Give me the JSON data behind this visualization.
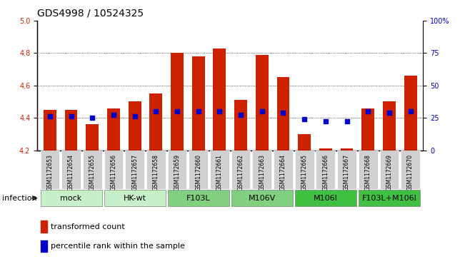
{
  "title": "GDS4998 / 10524325",
  "samples": [
    "GSM1172653",
    "GSM1172654",
    "GSM1172655",
    "GSM1172656",
    "GSM1172657",
    "GSM1172658",
    "GSM1172659",
    "GSM1172660",
    "GSM1172661",
    "GSM1172662",
    "GSM1172663",
    "GSM1172664",
    "GSM1172665",
    "GSM1172666",
    "GSM1172667",
    "GSM1172668",
    "GSM1172669",
    "GSM1172670"
  ],
  "bar_values": [
    4.45,
    4.45,
    4.36,
    4.46,
    4.5,
    4.55,
    4.8,
    4.78,
    4.83,
    4.51,
    4.79,
    4.65,
    4.3,
    4.21,
    4.21,
    4.46,
    4.5,
    4.66
  ],
  "bar_base": 4.2,
  "dot_values": [
    4.41,
    4.41,
    4.4,
    4.42,
    4.41,
    4.44,
    4.44,
    4.44,
    4.44,
    4.42,
    4.44,
    4.43,
    4.39,
    4.38,
    4.38,
    4.44,
    4.43,
    4.44
  ],
  "groups": [
    {
      "label": "mock",
      "start": 0,
      "end": 2,
      "color": "#c8f0c8"
    },
    {
      "label": "HK-wt",
      "start": 3,
      "end": 5,
      "color": "#c8f0c8"
    },
    {
      "label": "F103L",
      "start": 6,
      "end": 8,
      "color": "#80d080"
    },
    {
      "label": "M106V",
      "start": 9,
      "end": 11,
      "color": "#80d080"
    },
    {
      "label": "M106I",
      "start": 12,
      "end": 14,
      "color": "#40c040"
    },
    {
      "label": "F103L+M106I",
      "start": 15,
      "end": 17,
      "color": "#40c040"
    }
  ],
  "ylim_left": [
    4.2,
    5.0
  ],
  "ylim_right": [
    0,
    100
  ],
  "yticks_left": [
    4.2,
    4.4,
    4.6,
    4.8,
    5.0
  ],
  "yticks_right": [
    0,
    25,
    50,
    75,
    100
  ],
  "ytick_labels_right": [
    "0",
    "25",
    "50",
    "75",
    "100%"
  ],
  "bar_color": "#cc2200",
  "dot_color": "#0000cc",
  "bar_width": 0.6,
  "infection_label": "infection",
  "legend_bar": "transformed count",
  "legend_dot": "percentile rank within the sample",
  "background_color": "#ffffff",
  "plot_bg_color": "#ffffff",
  "grid_color": "#000000",
  "title_fontsize": 10,
  "axis_label_fontsize": 8,
  "tick_label_fontsize": 7,
  "group_label_fontsize": 8
}
